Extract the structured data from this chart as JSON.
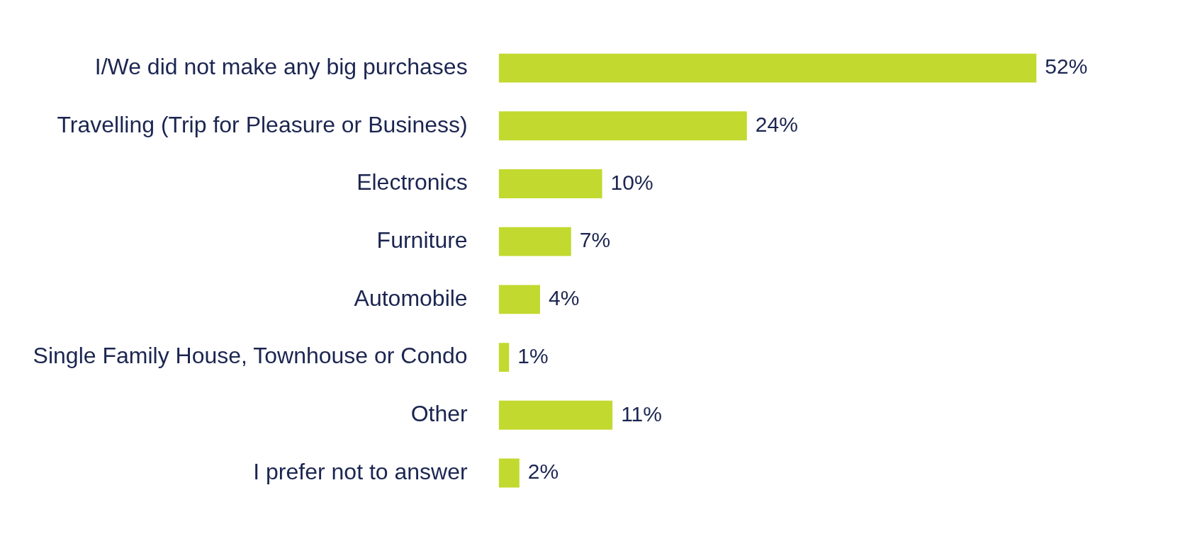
{
  "chart_data": {
    "type": "bar",
    "orientation": "horizontal",
    "categories": [
      "I/We did not make any big purchases",
      "Travelling (Trip for Pleasure or Business)",
      "Electronics",
      "Furniture",
      "Automobile",
      "Single Family House, Townhouse or Condo",
      "Other",
      "I prefer not to answer"
    ],
    "values": [
      52,
      24,
      10,
      7,
      4,
      1,
      11,
      2
    ],
    "value_labels": [
      "52%",
      "24%",
      "10%",
      "7%",
      "4%",
      "1%",
      "11%",
      "2%"
    ],
    "color": "#c2d92f",
    "legend": false
  }
}
